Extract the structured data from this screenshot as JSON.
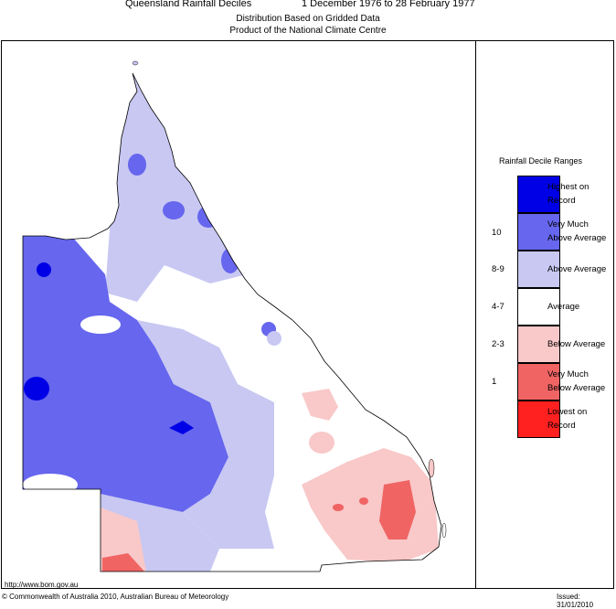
{
  "header": {
    "title": "Queensland Rainfall Deciles",
    "period": "1 December 1976 to 28 February 1977",
    "subtitle1": "Distribution Based on Gridded Data",
    "subtitle2": "Product of the National Climate Centre"
  },
  "legend": {
    "title": "Rainfall Decile Ranges",
    "items": [
      {
        "label": "Highest on Record",
        "decile": "",
        "color": "#0000e6"
      },
      {
        "label": "Very Much Above Average",
        "decile": "10",
        "color": "#6666ee"
      },
      {
        "label": "Above Average",
        "decile": "8-9",
        "color": "#c8c8f3"
      },
      {
        "label": "Average",
        "decile": "4-7",
        "color": "#ffffff"
      },
      {
        "label": "Below Average",
        "decile": "2-3",
        "color": "#f9c8c8"
      },
      {
        "label": "Very Much Below Average",
        "decile": "1",
        "color": "#f06464"
      },
      {
        "label": "Lowest on Record",
        "decile": "",
        "color": "#ff2020"
      }
    ]
  },
  "footer": {
    "url": "http://www.bom.gov.au",
    "copyright": "© Commonwealth of Australia 2010, Australian Bureau of Meteorology",
    "issued": "Issued: 31/01/2010"
  }
}
